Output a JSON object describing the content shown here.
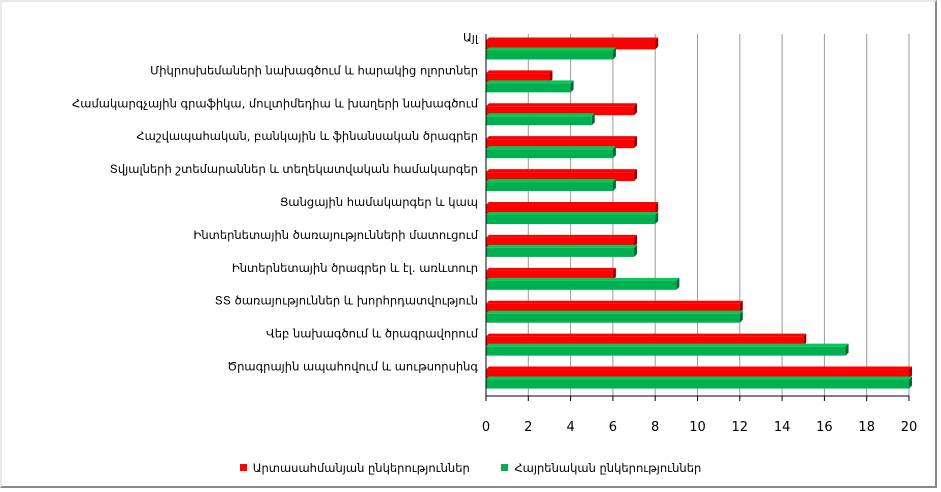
{
  "chart_data": {
    "type": "bar",
    "orientation": "horizontal",
    "categories": [
      "Այլ",
      "Միկրոսխեմաների նախագծում և հարակից ոլորտներ",
      "Համակարգչային գրաֆիկա, մուլտիմեդիա և խաղերի նախագծում",
      "Հաշվապահական, բանկային և ֆինանսական ծրագրեր",
      "Տվյալների շտեմարաններ և տեղեկատվական համակարգեր",
      "Ցանցային համակարգեր և կապ",
      "Ինտերնետային ծառայությունների մատուցում",
      "Ինտերնետային ծրագրեր և էլ. առևտուր",
      "ՏՏ ծառայություններ և խորհրդատվություն",
      "Վեբ նախագծում և ծրագրավորում",
      "Ծրագրային ապահովում և աութսորսինգ"
    ],
    "series": [
      {
        "name": "Արտասահմանյան ընկերություններ",
        "color": "#ff0000",
        "values": [
          8,
          3,
          7,
          7,
          7,
          8,
          7,
          6,
          12,
          15,
          20
        ]
      },
      {
        "name": "Հայրենական ընկերություններ",
        "color": "#00b050",
        "values": [
          6,
          4,
          5,
          6,
          6,
          8,
          7,
          9,
          12,
          17,
          20
        ]
      }
    ],
    "xlim": [
      0,
      20
    ],
    "xticks": [
      "0",
      "2",
      "4",
      "6",
      "8",
      "10",
      "12",
      "14",
      "16",
      "18",
      "20"
    ],
    "grid": true,
    "legend_position": "bottom"
  }
}
